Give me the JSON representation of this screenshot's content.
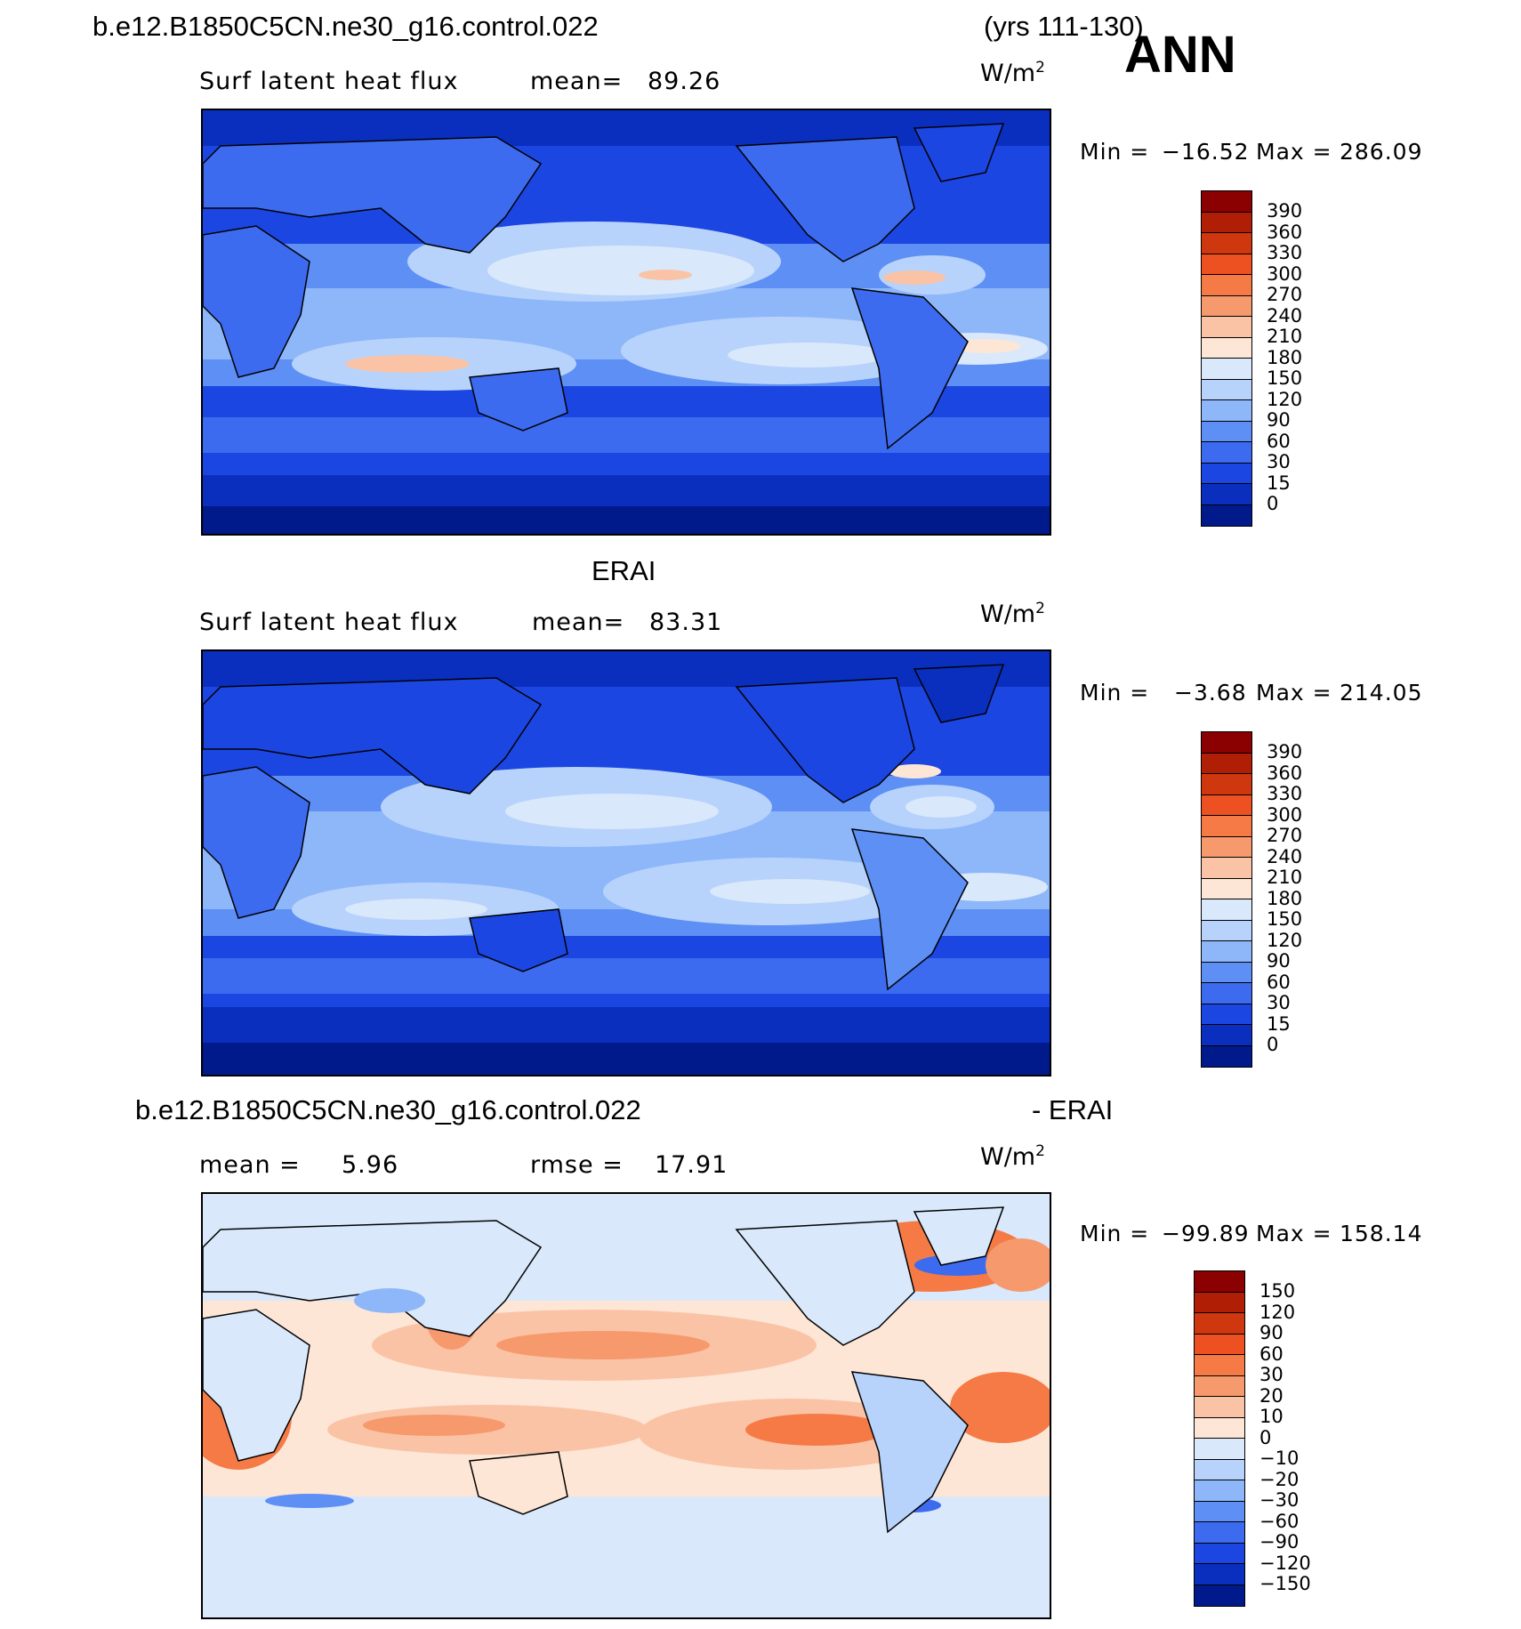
{
  "header": {
    "case_name": "b.e12.B1850C5CN.ne30_g16.control.022",
    "years": "(yrs 111-130)",
    "season": "ANN"
  },
  "panel_top": {
    "variable": "Surf latent heat flux",
    "mean_label": "mean=",
    "mean_value": "89.26",
    "units_base": "W/m",
    "units_exp": "2",
    "min_label": "Min  =",
    "min_value": "−16.52",
    "max_label": "Max  =",
    "max_value": "286.09"
  },
  "panel_mid": {
    "title": "ERAI",
    "variable": "Surf latent heat flux",
    "mean_label": "mean=",
    "mean_value": "83.31",
    "units_base": "W/m",
    "units_exp": "2",
    "min_label": "Min  =",
    "min_value": "−3.68",
    "max_label": "Max  =",
    "max_value": "214.05"
  },
  "panel_bot": {
    "title_left": "b.e12.B1850C5CN.ne30_g16.control.022",
    "title_right": "- ERAI",
    "mean_label": "mean =",
    "mean_value": "5.96",
    "rmse_label": "rmse  =",
    "rmse_value": "17.91",
    "units_base": "W/m",
    "units_exp": "2",
    "min_label": "Min  =",
    "min_value": "−99.89",
    "max_label": "Max  =",
    "max_value": "158.14"
  },
  "colorbar_abs": {
    "labels": [
      "390",
      "360",
      "330",
      "300",
      "270",
      "240",
      "210",
      "180",
      "150",
      "120",
      "90",
      "60",
      "30",
      "15",
      "0"
    ],
    "colors": [
      "#8b0000",
      "#b01e05",
      "#cf380f",
      "#ee5121",
      "#f57a46",
      "#f69a6e",
      "#fbc3a6",
      "#fde6d6",
      "#d9e8fb",
      "#b7d3fb",
      "#8eb7fa",
      "#5e8ff5",
      "#3d6bef",
      "#1b46e2",
      "#0a2fbe",
      "#001a8b"
    ]
  },
  "colorbar_diff": {
    "labels": [
      "150",
      "120",
      "90",
      "60",
      "30",
      "20",
      "10",
      "0",
      "−10",
      "−20",
      "−30",
      "−60",
      "−90",
      "−120",
      "−150"
    ],
    "colors": [
      "#8b0000",
      "#b01e05",
      "#cf380f",
      "#ee5121",
      "#f57a46",
      "#f69a6e",
      "#fbc3a6",
      "#fde6d6",
      "#d9e8fb",
      "#b7d3fb",
      "#8eb7fa",
      "#5e8ff5",
      "#3d6bef",
      "#1b46e2",
      "#0a2fbe",
      "#001a8b"
    ]
  }
}
